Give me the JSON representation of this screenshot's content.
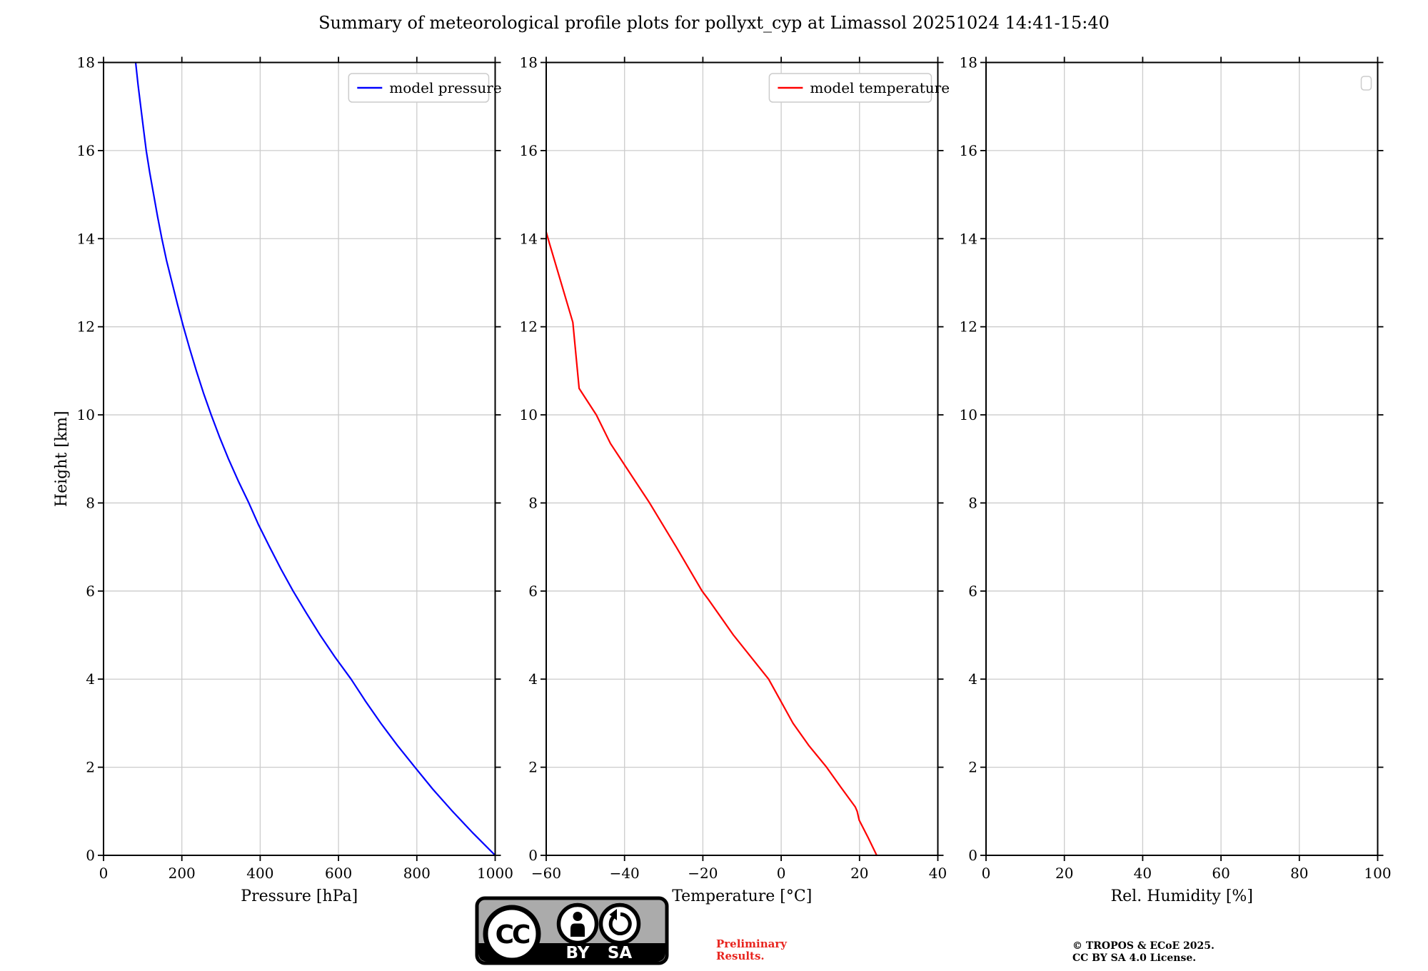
{
  "title": "Summary of meteorological profile plots for pollyxt_cyp at Limassol 20251024 14:41-15:40",
  "chart_data": [
    {
      "id": "pressure",
      "type": "line",
      "xlabel": "Pressure [hPa]",
      "ylabel": "Height [km]",
      "xlim": [
        0,
        1000
      ],
      "xticks": [
        0,
        200,
        400,
        600,
        800,
        1000
      ],
      "xtick_labels": [
        "0",
        "200",
        "400",
        "600",
        "800",
        "1000"
      ],
      "ylim": [
        0,
        18
      ],
      "yticks": [
        0,
        2,
        4,
        6,
        8,
        10,
        12,
        14,
        16,
        18
      ],
      "ytick_labels": [
        "0",
        "2",
        "4",
        "6",
        "8",
        "10",
        "12",
        "14",
        "16",
        "18"
      ],
      "grid": true,
      "legend": {
        "position": "upper right",
        "entries": [
          {
            "label": "model pressure",
            "color": "#0000ff"
          }
        ]
      },
      "series": [
        {
          "name": "model pressure",
          "color": "#0000ff",
          "points": [
            [
              82,
              18
            ],
            [
              88,
              17.5
            ],
            [
              95,
              17
            ],
            [
              102,
              16.5
            ],
            [
              109,
              16
            ],
            [
              118,
              15.5
            ],
            [
              128,
              15
            ],
            [
              138,
              14.5
            ],
            [
              149,
              14
            ],
            [
              161,
              13.5
            ],
            [
              175,
              13
            ],
            [
              189,
              12.5
            ],
            [
              204,
              12
            ],
            [
              220,
              11.5
            ],
            [
              237,
              11
            ],
            [
              255,
              10.5
            ],
            [
              275,
              10
            ],
            [
              296,
              9.5
            ],
            [
              319,
              9
            ],
            [
              344,
              8.5
            ],
            [
              371,
              8
            ],
            [
              396,
              7.5
            ],
            [
              424,
              7
            ],
            [
              453,
              6.5
            ],
            [
              484,
              6
            ],
            [
              518,
              5.5
            ],
            [
              553,
              5
            ],
            [
              591,
              4.5
            ],
            [
              632,
              4
            ],
            [
              669,
              3.5
            ],
            [
              708,
              3
            ],
            [
              750,
              2.5
            ],
            [
              795,
              2
            ],
            [
              841,
              1.5
            ],
            [
              891,
              1
            ],
            [
              944,
              0.5
            ],
            [
              1000,
              0
            ]
          ]
        }
      ]
    },
    {
      "id": "temperature",
      "type": "line",
      "xlabel": "Temperature [°C]",
      "ylabel": "",
      "xlim": [
        -60,
        40
      ],
      "xticks": [
        -60,
        -40,
        -20,
        0,
        20,
        40
      ],
      "xtick_labels": [
        "−60",
        "−40",
        "−20",
        "0",
        "20",
        "40"
      ],
      "ylim": [
        0,
        18
      ],
      "yticks": [
        0,
        2,
        4,
        6,
        8,
        10,
        12,
        14,
        16,
        18
      ],
      "ytick_labels": [
        "0",
        "2",
        "4",
        "6",
        "8",
        "10",
        "12",
        "14",
        "16",
        "18"
      ],
      "grid": true,
      "legend": {
        "position": "upper right",
        "entries": [
          {
            "label": "model temperature",
            "color": "#ff0000"
          }
        ]
      },
      "series": [
        {
          "name": "model temperature",
          "color": "#ff0000",
          "points": [
            [
              -60,
              14.15
            ],
            [
              -59.2,
              13.9
            ],
            [
              -53.2,
              12.1
            ],
            [
              -51.6,
              10.6
            ],
            [
              -47.2,
              10.0
            ],
            [
              -43.6,
              9.35
            ],
            [
              -33.6,
              8.0
            ],
            [
              -26.8,
              7.0
            ],
            [
              -20.2,
              6.0
            ],
            [
              -18.5,
              5.8
            ],
            [
              -12.2,
              5.0
            ],
            [
              -3.2,
              4.0
            ],
            [
              3.0,
              3.0
            ],
            [
              7.0,
              2.5
            ],
            [
              11.6,
              2.0
            ],
            [
              15.2,
              1.55
            ],
            [
              18.9,
              1.1
            ],
            [
              19.4,
              1.0
            ],
            [
              19.9,
              0.8
            ],
            [
              22.2,
              0.4
            ],
            [
              24.4,
              0.0
            ]
          ]
        }
      ]
    },
    {
      "id": "humidity",
      "type": "line",
      "xlabel": "Rel. Humidity [%]",
      "ylabel": "",
      "xlim": [
        0,
        100
      ],
      "xticks": [
        0,
        20,
        40,
        60,
        80,
        100
      ],
      "xtick_labels": [
        "0",
        "20",
        "40",
        "60",
        "80",
        "100"
      ],
      "ylim": [
        0,
        18
      ],
      "yticks": [
        0,
        2,
        4,
        6,
        8,
        10,
        12,
        14,
        16,
        18
      ],
      "ytick_labels": [
        "0",
        "2",
        "4",
        "6",
        "8",
        "10",
        "12",
        "14",
        "16",
        "18"
      ],
      "grid": true,
      "legend": {
        "position": "upper right",
        "entries": []
      },
      "series": []
    }
  ],
  "footer": {
    "preliminary": {
      "line1": "Preliminary",
      "line2": "Results.",
      "color": "#e8251f"
    },
    "license_badge": {
      "cc_label": "CC",
      "by_label": "BY",
      "sa_label": "SA"
    },
    "copyright": {
      "line1": "© TROPOS & ECoE 2025.",
      "line2": "CC BY SA 4.0 License."
    }
  }
}
